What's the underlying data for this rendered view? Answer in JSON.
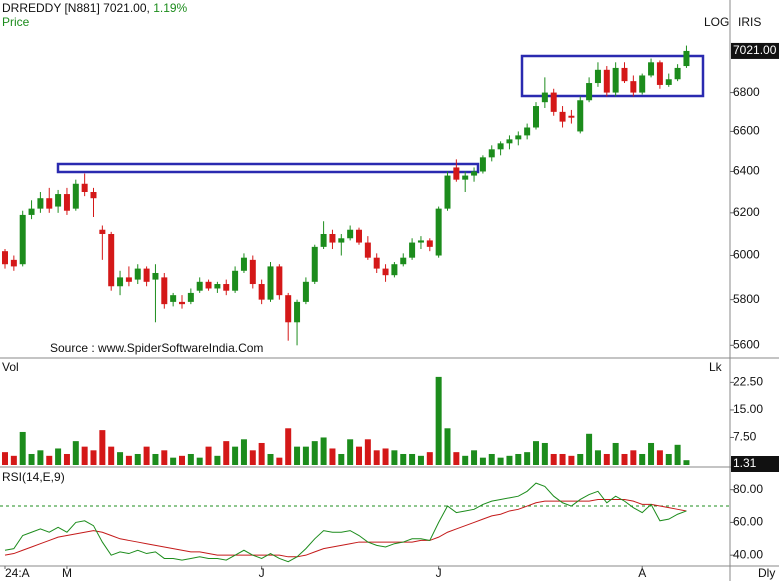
{
  "chart_data": [
    {
      "type": "candlestick",
      "symbol": "DRREDDY [N881] 7021.00,",
      "change": "1.19%",
      "label": "Price",
      "log_label": "LOG",
      "brand": "IRIS",
      "source": "Source : www.SpiderSoftwareIndia.Com",
      "log_scale": true,
      "up_color": "#1c8c1c",
      "down_color": "#d41818",
      "ylim": [
        5550,
        7290
      ],
      "yticks": [
        5600,
        5800,
        6000,
        6200,
        6400,
        6600,
        6800
      ],
      "last_label": "7021.00",
      "ohlc": [
        [
          6020,
          6030,
          5940,
          5960
        ],
        [
          5980,
          6000,
          5930,
          5950
        ],
        [
          5960,
          6210,
          5950,
          6190
        ],
        [
          6190,
          6260,
          6170,
          6220
        ],
        [
          6220,
          6300,
          6200,
          6270
        ],
        [
          6270,
          6320,
          6200,
          6220
        ],
        [
          6230,
          6310,
          6200,
          6290
        ],
        [
          6290,
          6320,
          6190,
          6210
        ],
        [
          6220,
          6360,
          6210,
          6340
        ],
        [
          6340,
          6390,
          6280,
          6300
        ],
        [
          6300,
          6320,
          6180,
          6270
        ],
        [
          6120,
          6140,
          5980,
          6100
        ],
        [
          6100,
          6110,
          5840,
          5860
        ],
        [
          5860,
          5930,
          5820,
          5900
        ],
        [
          5900,
          5950,
          5860,
          5880
        ],
        [
          5890,
          5960,
          5870,
          5940
        ],
        [
          5940,
          5950,
          5860,
          5880
        ],
        [
          5890,
          5960,
          5700,
          5920
        ],
        [
          5900,
          5920,
          5760,
          5780
        ],
        [
          5790,
          5830,
          5770,
          5820
        ],
        [
          5790,
          5820,
          5760,
          5780
        ],
        [
          5790,
          5850,
          5780,
          5830
        ],
        [
          5840,
          5900,
          5830,
          5880
        ],
        [
          5880,
          5890,
          5840,
          5850
        ],
        [
          5850,
          5880,
          5830,
          5870
        ],
        [
          5870,
          5890,
          5820,
          5840
        ],
        [
          5840,
          5950,
          5830,
          5930
        ],
        [
          5930,
          6010,
          5920,
          5990
        ],
        [
          5980,
          6000,
          5850,
          5870
        ],
        [
          5870,
          5890,
          5780,
          5800
        ],
        [
          5800,
          5970,
          5790,
          5950
        ],
        [
          5950,
          5960,
          5800,
          5820
        ],
        [
          5820,
          5830,
          5620,
          5700
        ],
        [
          5700,
          5800,
          5600,
          5790
        ],
        [
          5790,
          5900,
          5780,
          5880
        ],
        [
          5880,
          6050,
          5870,
          6040
        ],
        [
          6040,
          6160,
          6030,
          6100
        ],
        [
          6100,
          6120,
          6030,
          6060
        ],
        [
          6060,
          6100,
          6000,
          6080
        ],
        [
          6080,
          6140,
          6070,
          6120
        ],
        [
          6120,
          6130,
          6050,
          6060
        ],
        [
          6060,
          6090,
          5980,
          5990
        ],
        [
          5990,
          6010,
          5920,
          5940
        ],
        [
          5940,
          5960,
          5880,
          5910
        ],
        [
          5910,
          5970,
          5900,
          5960
        ],
        [
          5960,
          6010,
          5950,
          5990
        ],
        [
          5990,
          6080,
          5980,
          6060
        ],
        [
          6060,
          6090,
          6030,
          6070
        ],
        [
          6070,
          6080,
          6020,
          6040
        ],
        [
          6000,
          6230,
          5990,
          6220
        ],
        [
          6220,
          6400,
          6210,
          6380
        ],
        [
          6420,
          6460,
          6350,
          6360
        ],
        [
          6360,
          6400,
          6300,
          6380
        ],
        [
          6380,
          6420,
          6350,
          6400
        ],
        [
          6400,
          6480,
          6390,
          6470
        ],
        [
          6470,
          6530,
          6450,
          6510
        ],
        [
          6510,
          6550,
          6480,
          6540
        ],
        [
          6540,
          6580,
          6510,
          6560
        ],
        [
          6560,
          6600,
          6530,
          6580
        ],
        [
          6580,
          6640,
          6560,
          6620
        ],
        [
          6620,
          6750,
          6610,
          6730
        ],
        [
          6750,
          6880,
          6720,
          6800
        ],
        [
          6800,
          6820,
          6680,
          6700
        ],
        [
          6700,
          6730,
          6620,
          6650
        ],
        [
          6680,
          6710,
          6640,
          6670
        ],
        [
          6600,
          6780,
          6590,
          6760
        ],
        [
          6760,
          6880,
          6750,
          6850
        ],
        [
          6850,
          6960,
          6830,
          6920
        ],
        [
          6920,
          6940,
          6780,
          6800
        ],
        [
          6800,
          6960,
          6780,
          6930
        ],
        [
          6930,
          6960,
          6850,
          6860
        ],
        [
          6860,
          6890,
          6780,
          6800
        ],
        [
          6800,
          6900,
          6790,
          6890
        ],
        [
          6890,
          6980,
          6880,
          6960
        ],
        [
          6960,
          6970,
          6820,
          6840
        ],
        [
          6840,
          6900,
          6830,
          6870
        ],
        [
          6870,
          6950,
          6860,
          6930
        ],
        [
          6940,
          7050,
          6930,
          7021
        ]
      ]
    },
    {
      "type": "bar",
      "label": "Vol",
      "unit": "Lk",
      "ylim": [
        0,
        28.6
      ],
      "yticks": [
        {
          "value": 7.5,
          "label": "7.50"
        },
        {
          "value": 15,
          "label": "15.00"
        },
        {
          "value": 22.5,
          "label": "22.50"
        }
      ],
      "last_label": "1.31",
      "values": [
        3.5,
        2.5,
        9,
        3,
        4,
        2.5,
        4.5,
        3,
        6.5,
        5,
        4,
        9.5,
        5,
        3.5,
        2.5,
        3,
        5,
        3,
        4,
        2,
        2.5,
        3,
        2,
        5,
        2.5,
        6.5,
        5,
        7,
        4,
        6,
        3,
        2,
        10,
        5,
        5,
        6.5,
        7.5,
        4.5,
        3,
        7,
        5,
        7,
        4,
        4.5,
        4,
        3,
        3,
        2.5,
        3.5,
        24,
        10,
        3.5,
        2.5,
        4,
        2,
        3,
        2,
        2.5,
        3,
        3.5,
        6.5,
        6,
        3,
        3,
        2.5,
        3,
        8.5,
        4,
        3,
        6,
        3,
        4,
        3,
        6,
        4,
        3,
        5.5,
        1.31
      ]
    },
    {
      "type": "line",
      "label": "RSI(14,E,9)",
      "timeframe": "Dly",
      "ylim": [
        34,
        92
      ],
      "yticks": [
        {
          "value": 40,
          "label": "40.00"
        },
        {
          "value": 60,
          "label": "60.00"
        },
        {
          "value": 80,
          "label": "80.00"
        }
      ],
      "reference_line": 70,
      "categories": [
        "24:A",
        null,
        null,
        null,
        null,
        null,
        null,
        "M",
        null,
        null,
        null,
        null,
        null,
        null,
        null,
        null,
        null,
        null,
        null,
        null,
        null,
        null,
        null,
        null,
        null,
        null,
        null,
        null,
        null,
        "J",
        null,
        null,
        null,
        null,
        null,
        null,
        null,
        null,
        null,
        null,
        null,
        null,
        null,
        null,
        null,
        null,
        null,
        null,
        null,
        "J",
        null,
        null,
        null,
        null,
        null,
        null,
        null,
        null,
        null,
        null,
        null,
        null,
        null,
        null,
        null,
        null,
        null,
        null,
        null,
        null,
        null,
        null,
        "A",
        null,
        null,
        null,
        null,
        null
      ],
      "series": [
        {
          "color": "#1c8c1c",
          "values": [
            43,
            44,
            52,
            54,
            56,
            54,
            57,
            54,
            60,
            61,
            58,
            48,
            40,
            42,
            41,
            43,
            41,
            42,
            38,
            38,
            37,
            38,
            39,
            38,
            38,
            37,
            40,
            43,
            40,
            38,
            41,
            38,
            36,
            39,
            44,
            50,
            55,
            54,
            54,
            55,
            52,
            48,
            46,
            45,
            47,
            48,
            50,
            50,
            49,
            60,
            70,
            66,
            67,
            68,
            71,
            73,
            74,
            75,
            76,
            79,
            84,
            82,
            76,
            72,
            70,
            74,
            77,
            79,
            72,
            76,
            73,
            69,
            66,
            71,
            61,
            62,
            65,
            67
          ]
        },
        {
          "color": "#c41a1a",
          "values": [
            40,
            41,
            43,
            45,
            47,
            49,
            51,
            52,
            53,
            54,
            55,
            54,
            52,
            50,
            49,
            48,
            47,
            46,
            45,
            44,
            43,
            42,
            42,
            41,
            40,
            40,
            40,
            40,
            40,
            40,
            40,
            40,
            39,
            39,
            40,
            42,
            44,
            45,
            46,
            47,
            48,
            48,
            48,
            48,
            48,
            48,
            48,
            49,
            49,
            51,
            54,
            56,
            58,
            60,
            62,
            64,
            65,
            67,
            68,
            70,
            72,
            73,
            73,
            73,
            73,
            73,
            73,
            74,
            74,
            74,
            74,
            73,
            71,
            71,
            70,
            69,
            68,
            67
          ]
        }
      ]
    }
  ]
}
